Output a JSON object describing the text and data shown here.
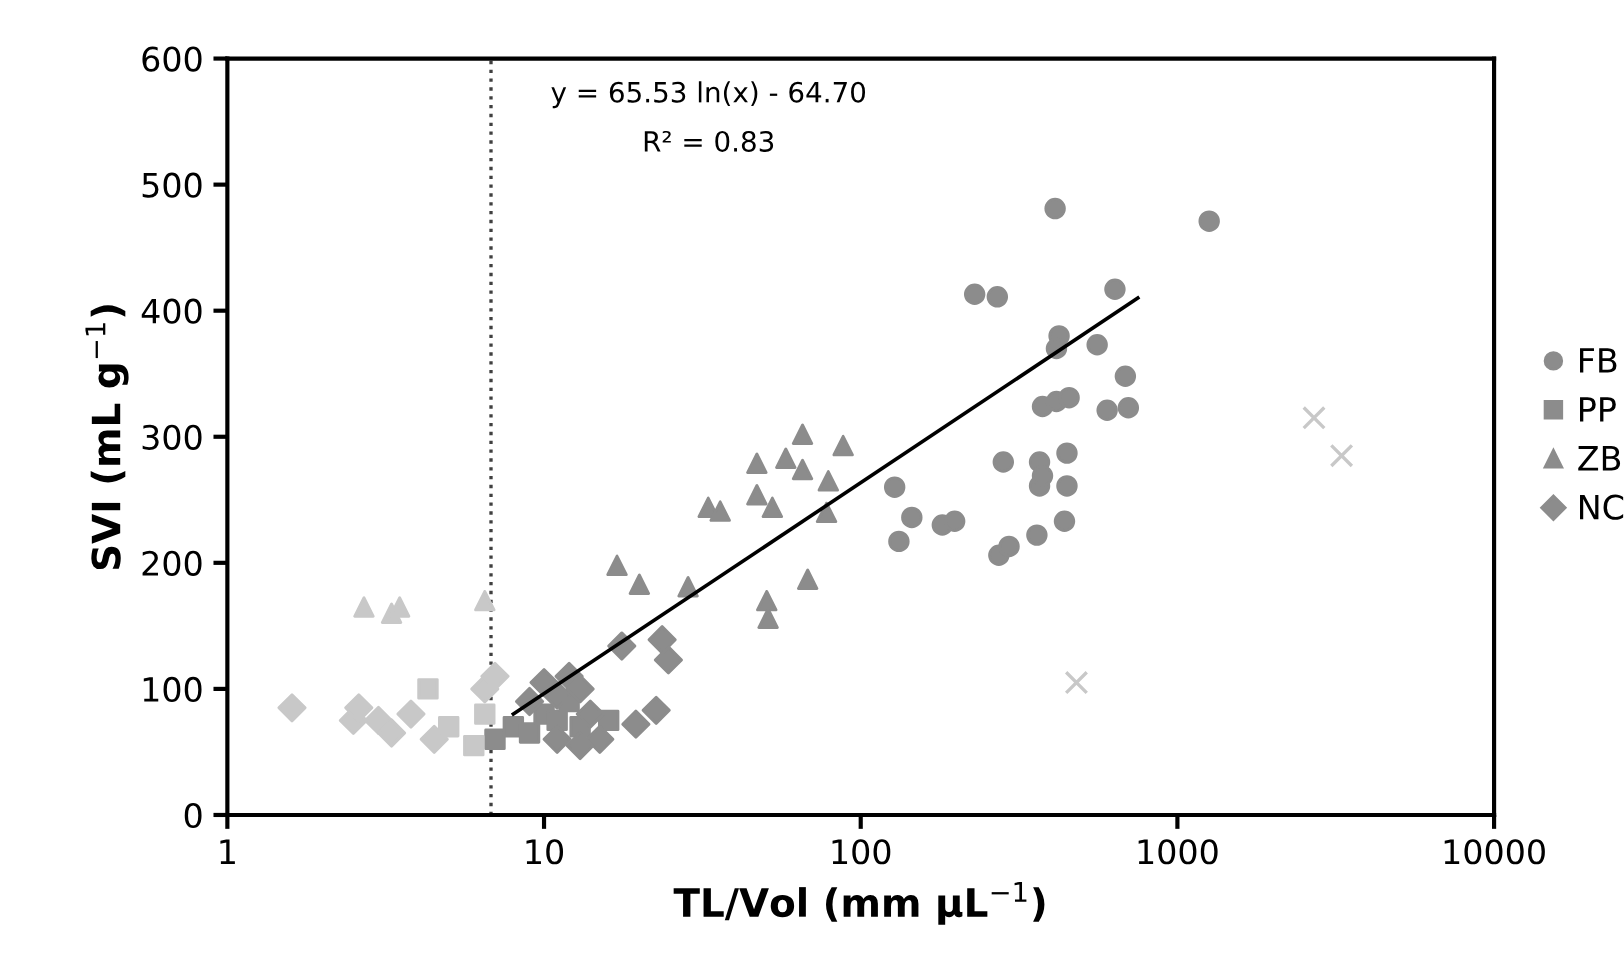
{
  "chart_data": {
    "type": "scatter",
    "xlabel": "TL/Vol (mm µL$^{−1}$)",
    "ylabel": "SVI (mL g$^{−1}$)",
    "log": "x",
    "xlim": [
      1,
      10000
    ],
    "xticks": [
      1,
      10,
      100,
      1000,
      10000
    ],
    "ylim": [
      0,
      600
    ],
    "yticks": [
      0,
      100,
      200,
      300,
      400,
      500,
      600
    ],
    "grid": false,
    "legend": "right",
    "annotations": [
      "y = 65.53 ln(x) - 64.70",
      "R² = 0.83"
    ],
    "ref_lines": [
      {
        "axis": "x",
        "value": 6.8,
        "color": "#404040",
        "line_style": "dotted"
      }
    ],
    "series": [
      {
        "name": "FB",
        "color": "#8c8c8c",
        "marker": "circle",
        "x": [
          411,
          1260,
          229,
          270,
          635,
          423,
          415,
          558,
          685,
          375,
          415,
          455,
          600,
          700,
          282,
          367,
          448,
          367,
          448,
          375,
          128,
          145,
          132,
          181,
          198,
          273,
          294,
          360,
          440
        ],
        "values": [
          481,
          471,
          413,
          411,
          417,
          380,
          370,
          373,
          348,
          324,
          328,
          331,
          321,
          323,
          280,
          280,
          287,
          261,
          261,
          269,
          260,
          236,
          217,
          230,
          233,
          206,
          213,
          222,
          233
        ]
      },
      {
        "name": "PP",
        "color": "#8c8c8c",
        "marker": "square",
        "x": [
          7,
          8,
          9,
          10,
          11,
          12,
          13,
          15,
          16
        ],
        "values": [
          60,
          70,
          65,
          80,
          75,
          90,
          70,
          null,
          75
        ]
      },
      {
        "name": "ZB",
        "color": "#8c8c8c",
        "marker": "triangle",
        "x": [
          65.5,
          88,
          47,
          58,
          65.5,
          79,
          47,
          52.6,
          78,
          33,
          36,
          17,
          20,
          28.5,
          68,
          50.5,
          51
        ],
        "values": [
          302,
          293,
          279,
          283,
          274,
          265,
          254,
          244,
          240,
          244,
          241,
          198,
          183,
          181,
          187,
          170,
          156
        ]
      },
      {
        "name": "NC",
        "color": "#8c8c8c",
        "marker": "diamond",
        "x": [
          17.6,
          23.6,
          24.7,
          22.6,
          19.5,
          9,
          10,
          11,
          12,
          13,
          14,
          15,
          13,
          11
        ],
        "values": [
          134,
          139,
          123,
          83,
          72,
          90,
          105,
          95,
          110,
          100,
          80,
          60,
          55,
          60
        ]
      },
      {
        "color": "#c8c8c8",
        "marker": "triangle",
        "x": [
          2.7,
          3.3,
          3.5,
          6.5
        ],
        "values": [
          165,
          160,
          165,
          170
        ]
      },
      {
        "color": "#c8c8c8",
        "marker": "diamond",
        "x": [
          1.6,
          2.5,
          2.6,
          3,
          3.3,
          3.8,
          4.5,
          5,
          6.5,
          7
        ],
        "values": [
          85,
          75,
          85,
          75,
          65,
          80,
          60,
          null,
          100,
          110
        ]
      },
      {
        "color": "#c8c8c8",
        "marker": "square",
        "x": [
          4.3,
          5,
          6,
          6.5
        ],
        "values": [
          100,
          70,
          55,
          80
        ]
      },
      {
        "color": "#c8c8c8",
        "marker": "cross",
        "x": [
          480,
          2700,
          3300
        ],
        "values": [
          105,
          315,
          285
        ]
      },
      {
        "type": "line",
        "color": "#000000",
        "marker": "none",
        "x": [
          8,
          750
        ],
        "values": [
          80,
          410
        ]
      }
    ]
  }
}
